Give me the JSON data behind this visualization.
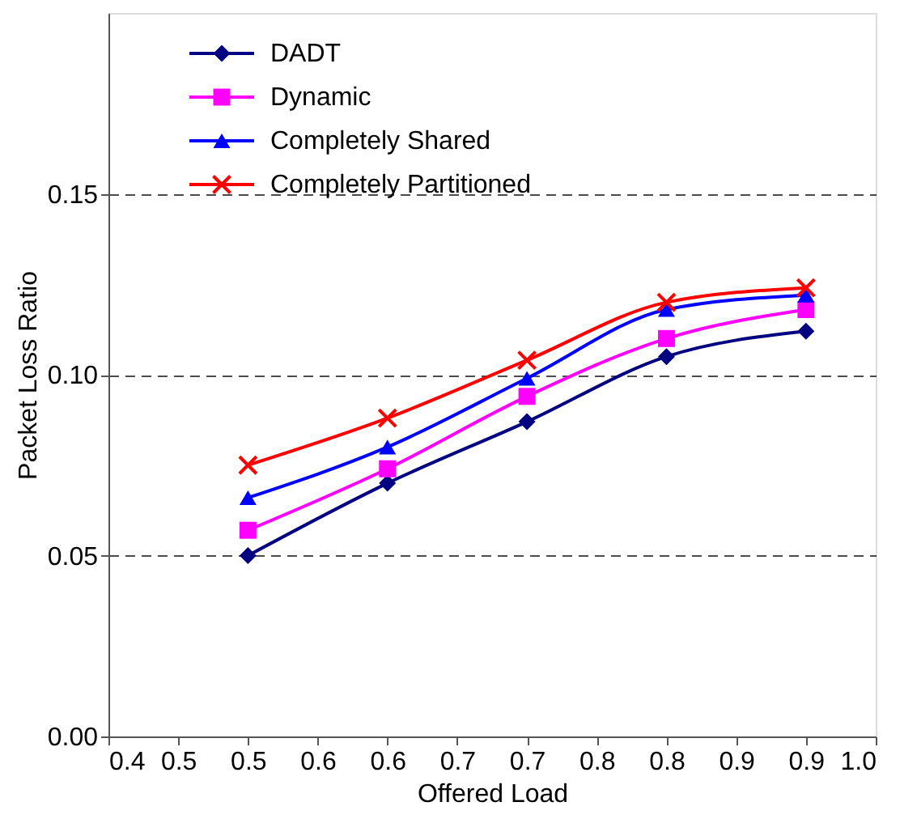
{
  "chart_data": {
    "type": "line",
    "xlabel": "Offered Load",
    "ylabel": "Packet Loss Ratio",
    "x": [
      0.5,
      0.6,
      0.7,
      0.8,
      0.9
    ],
    "series": [
      {
        "name": "DADT",
        "color": "#000080",
        "marker": "diamond",
        "values": [
          0.05,
          0.07,
          0.087,
          0.105,
          0.112
        ]
      },
      {
        "name": "Dynamic",
        "color": "#ff00ff",
        "marker": "square",
        "values": [
          0.057,
          0.074,
          0.094,
          0.11,
          0.118
        ]
      },
      {
        "name": "Completely Shared",
        "color": "#0000ff",
        "marker": "triangle",
        "values": [
          0.066,
          0.08,
          0.099,
          0.118,
          0.122
        ]
      },
      {
        "name": "Completely Partitioned",
        "color": "#ff0000",
        "marker": "cross",
        "values": [
          0.075,
          0.088,
          0.104,
          0.12,
          0.124
        ]
      }
    ],
    "xlim": [
      0.4,
      0.95
    ],
    "xticks": [
      0.4,
      {
        "value": 0.45,
        "label": "0.5"
      },
      0.5,
      {
        "value": 0.55,
        "label": "0.6"
      },
      0.6,
      {
        "value": 0.65,
        "label": "0.7"
      },
      0.7,
      {
        "value": 0.75,
        "label": "0.8"
      },
      0.8,
      {
        "value": 0.85,
        "label": "0.9"
      },
      0.9,
      {
        "value": 0.95,
        "label": "1.0"
      }
    ],
    "ylim": [
      0,
      0.2
    ],
    "yticks": [
      {
        "value": 0,
        "label": "0.00"
      },
      {
        "value": 0.05,
        "label": "0.05"
      },
      {
        "value": 0.1,
        "label": "0.10"
      },
      {
        "value": 0.15,
        "label": "0.15"
      }
    ],
    "grid": "y",
    "legend": "top left",
    "line_style": "solid"
  }
}
